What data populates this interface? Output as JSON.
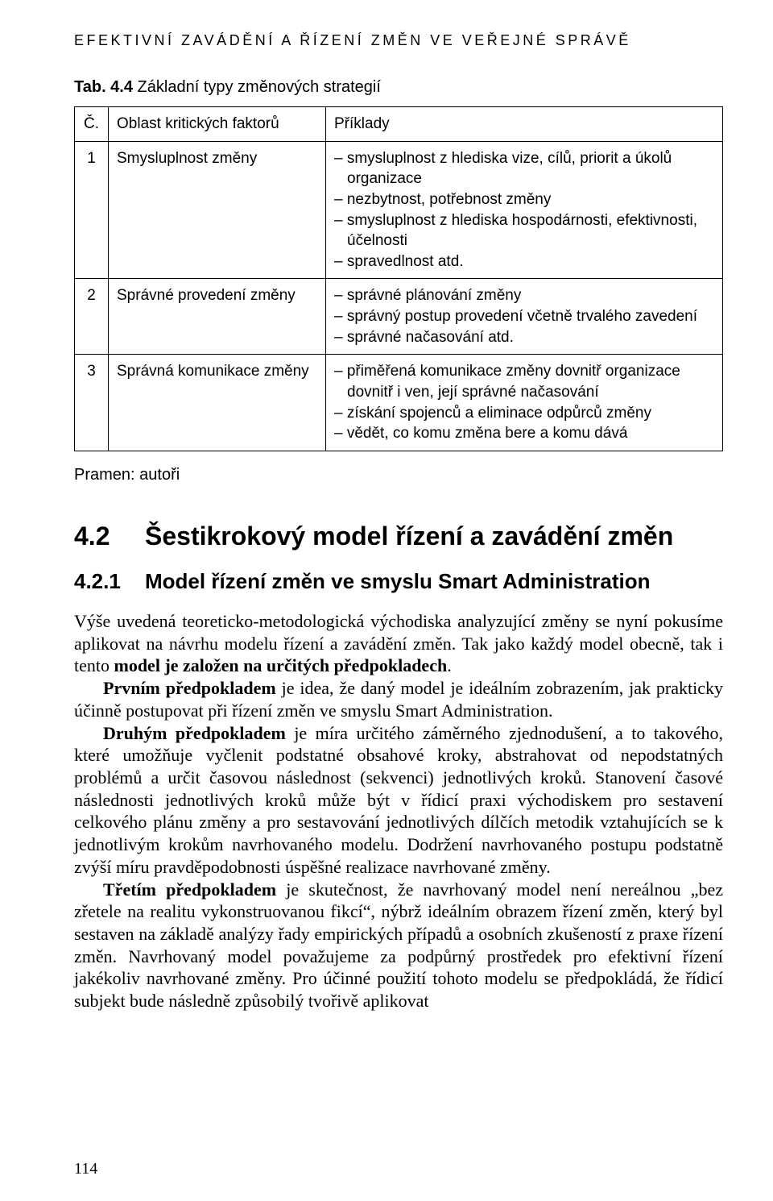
{
  "running_head": "EFEKTIVNÍ ZAVÁDĚNÍ A ŘÍZENÍ ZMĚN VE VEŘEJNÉ SPRÁVĚ",
  "table": {
    "caption_label": "Tab. 4.4",
    "caption_text": " Základní typy změnových strategií",
    "head": {
      "num": "Č.",
      "area": "Oblast kritických faktorů",
      "examples": "Příklady"
    },
    "rows": [
      {
        "num": "1",
        "area": "Smysluplnost změny",
        "items": [
          "smysluplnost z hlediska vize, cílů, priorit a úkolů organizace",
          "nezbytnost, potřebnost změny",
          "smysluplnost z hlediska hospodárnosti, efektivnosti, účelnosti",
          "spravedlnost atd."
        ]
      },
      {
        "num": "2",
        "area": "Správné provedení změny",
        "items": [
          "správné plánování změny",
          "správný postup provedení včetně trvalého zavedení",
          "správné načasování atd."
        ]
      },
      {
        "num": "3",
        "area": "Správná komunikace změny",
        "items": [
          "přiměřená komunikace změny dovnitř organizace dovnitř i ven, její správné načasování",
          "získání spojenců a eliminace odpůrců změny",
          "vědět, co komu změna bere a komu dává"
        ]
      }
    ],
    "source": "Pramen: autoři"
  },
  "section": {
    "num": "4.2",
    "title": "Šestikrokový model řízení a zavádění změn"
  },
  "subsection": {
    "num": "4.2.1",
    "title": "Model řízení změn ve smyslu Smart Administration"
  },
  "para1a": "Výše uvedená teoreticko-metodologická východiska analyzující změny se nyní pokusíme aplikovat na návrhu modelu řízení a zavádění změn. Tak jako každý model obecně, tak i tento ",
  "para1b_bold": "model je založen na určitých předpokladech",
  "para1c": ".",
  "para2a_bold": "Prvním předpokladem",
  "para2b": " je idea, že daný model je ideálním zobrazením, jak prakticky účinně postupovat při řízení změn ve smyslu Smart Administration.",
  "para3a_bold": "Druhým předpokladem",
  "para3b": " je míra určitého záměrného zjednodušení, a to takového, které umožňuje vyčlenit podstatné obsahové kroky, abstrahovat od nepodstatných problémů a určit časovou následnost (sekvenci) jednotlivých kroků. Stanovení časové následnosti jednotlivých kroků může být v řídicí praxi východiskem pro sestavení celkového plánu změny a pro sestavování jednotlivých dílčích metodik vztahujících se k jednotlivým krokům navrhovaného modelu. Dodržení navrhovaného postupu podstatně zvýší míru pravděpodobnosti úspěšné realizace navrhované změny.",
  "para4a_bold": "Třetím předpokladem",
  "para4b": " je skutečnost, že navrhovaný model není nereálnou „bez zřetele na realitu vykonstruovanou fikcí“, nýbrž ideálním obrazem řízení změn, který byl sestaven na základě analýzy řady empirických případů a osobních zkušeností z praxe řízení změn. Navrhovaný model považujeme za podpůrný prostředek pro efektivní řízení jakékoliv navrhované změny. Pro účinné použití tohoto modelu se předpokládá, že řídicí subjekt bude následně způsobilý tvořivě aplikovat",
  "page_number": "114"
}
